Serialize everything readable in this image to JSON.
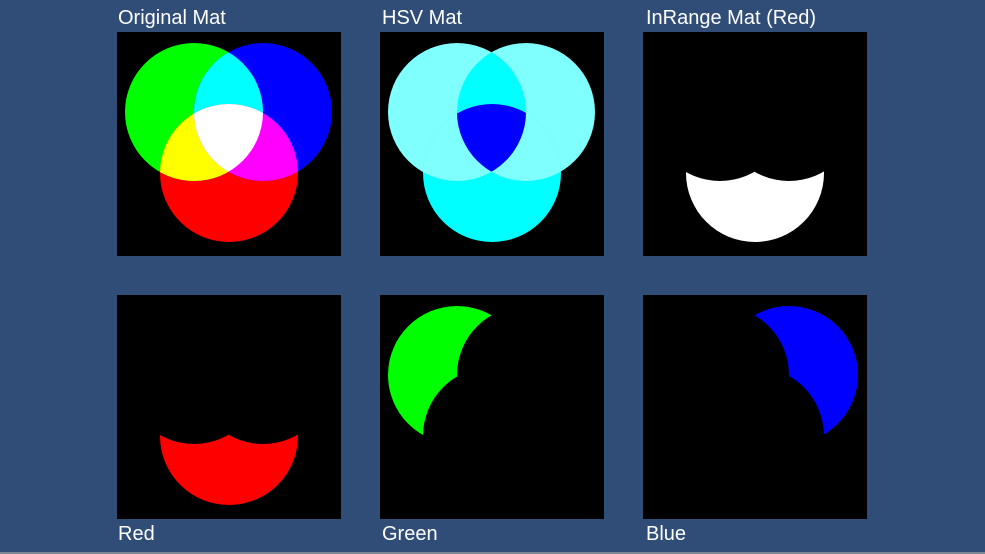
{
  "panels": {
    "original": {
      "label": "Original Mat"
    },
    "hsv": {
      "label": "HSV Mat"
    },
    "inrange": {
      "label": "InRange Mat (Red)"
    },
    "red": {
      "label": "Red"
    },
    "green": {
      "label": "Green"
    },
    "blue": {
      "label": "Blue"
    }
  },
  "colors": {
    "background": "#304d78",
    "panel": "#000000",
    "red": "#ff0000",
    "green": "#00ff00",
    "blue": "#0000ff",
    "cyan": "#00ffff",
    "light_cyan": "#80ffff",
    "white": "#ffffff",
    "yellow": "#ffff00",
    "magenta": "#ff00ff"
  }
}
